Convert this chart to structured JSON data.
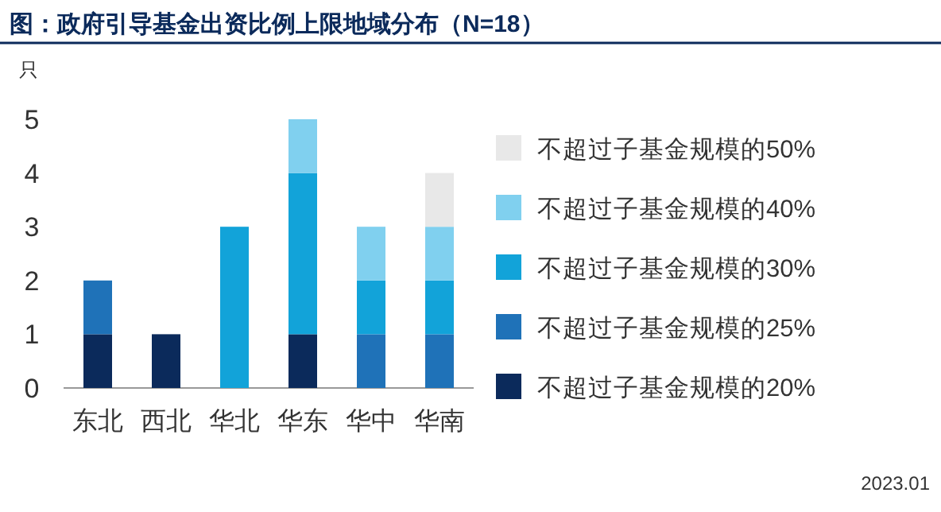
{
  "chart_data": {
    "type": "bar",
    "title": "图：政府引导基金出资比例上限地域分布（N=18）",
    "ylabel": "只",
    "categories": [
      "东北",
      "西北",
      "华北",
      "华东",
      "华中",
      "华南"
    ],
    "stacked": true,
    "series": [
      {
        "name": "不超过子基金规模的20%",
        "color": "#0b2a5b",
        "values": [
          1,
          1,
          0,
          1,
          0,
          0
        ]
      },
      {
        "name": "不超过子基金规模的25%",
        "color": "#1f72b8",
        "values": [
          1,
          0,
          0,
          0,
          1,
          1
        ]
      },
      {
        "name": "不超过子基金规模的30%",
        "color": "#12a3d9",
        "values": [
          0,
          0,
          3,
          3,
          1,
          1
        ]
      },
      {
        "name": "不超过子基金规模的40%",
        "color": "#80d0ef",
        "values": [
          0,
          0,
          0,
          1,
          1,
          1
        ]
      },
      {
        "name": "不超过子基金规模的50%",
        "color": "#e8e8e8",
        "values": [
          0,
          0,
          0,
          0,
          0,
          1
        ]
      }
    ],
    "ylim": [
      0,
      5
    ],
    "yticks": [
      0,
      1,
      2,
      3,
      4,
      5
    ],
    "grid": false,
    "legend": "right",
    "annotations": [
      "2023.01"
    ]
  }
}
